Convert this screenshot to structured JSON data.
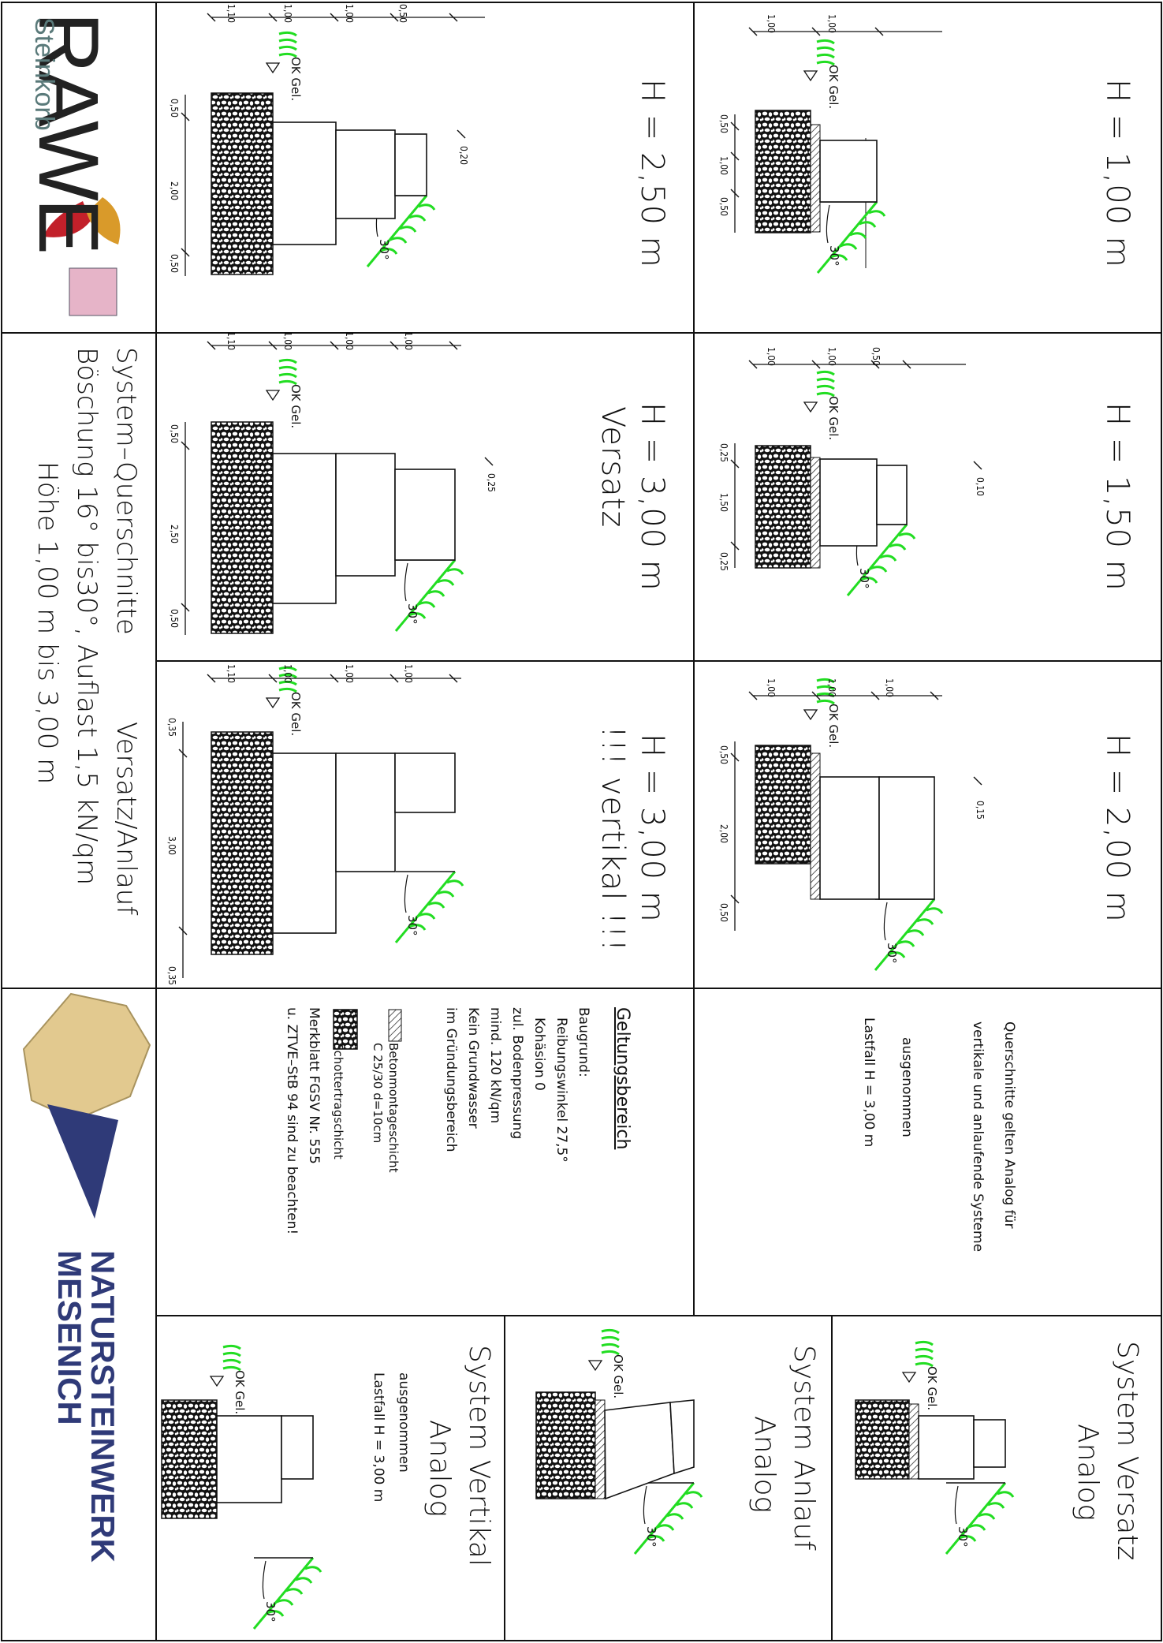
{
  "title": {
    "line1": "System–Querschnitte",
    "line1b": "Versatz/Anlauf",
    "line2": "Böschung 16° bis30°, Auflast 1,5 kN/qm",
    "line3": "Höhe 1,00 m bis 3,00 m"
  },
  "brand": {
    "rawe": "RAWE",
    "steinkorb": "Steinkorb",
    "natur1": "NATURSTEINWERK",
    "natur2": "MESENICH"
  },
  "panels": {
    "h100": "H = 1,00 m",
    "h150": "H = 1,50 m",
    "h200": "H = 2,00 m",
    "h250": "H = 2,50 m",
    "h300v": "H = 3,00 m",
    "h300v_sub": "Versatz",
    "h300k": "H = 3,00 m",
    "h300k_sub": "!!! vertikal !!!"
  },
  "labels": {
    "ok_gel": "OK Gel.",
    "angle": "30°",
    "angle_cut": "30°"
  },
  "dims": {
    "h100_top": [
      "1,00",
      "1,00"
    ],
    "h100_side": [
      "0,50",
      "1,00",
      "0,50"
    ],
    "h150_top": [
      "1,00",
      "1,00",
      "0,50"
    ],
    "h150_side": [
      "0,25",
      "1,50",
      "0,25"
    ],
    "h150_step": "0,10",
    "h200_top": [
      "1,00",
      "1,00",
      "1,00"
    ],
    "h200_side": [
      "0,50",
      "2,00",
      "0,50"
    ],
    "h200_step": "0,15",
    "h250_top": [
      "1,10",
      "1,00",
      "1,00",
      "0,50"
    ],
    "h250_side": [
      "0,50",
      "2,00",
      "0,50"
    ],
    "h250_step": "0,20",
    "h300v_top": [
      "1,10",
      "1,00",
      "1,00",
      "1,00"
    ],
    "h300v_side": [
      "0,50",
      "2,50",
      "0,50"
    ],
    "h300v_step": "0,25",
    "h300k_top": [
      "1,10",
      "1,00",
      "1,00",
      "1,00"
    ],
    "h300k_side": [
      "0,35",
      "3,00",
      "0,35"
    ]
  },
  "note": {
    "line1": "Querschnitte gelten Analog für",
    "line2": "vertikale und anlaufende Systeme",
    "line3": "ausgenommen",
    "line4": "Lastfall H = 3,00 m"
  },
  "geltung": {
    "heading": "Geltungsbereich",
    "baugrund": "Baugrund:",
    "reibung": "Reibungswinkel 27,5°",
    "kohaesion": "Kohäsion 0",
    "boden1": "zul. Bodenpressung",
    "boden2": "mind. 120 kN/qm",
    "grund1": "Kein Grundwasser",
    "grund2": "im Gründungsbereich",
    "beton1": "Betonmontageschicht",
    "beton2": "C 25/30 d=10cm",
    "schotter": "Schottertragschicht",
    "merk1": "Merkblatt FGSV Nr. 555",
    "merk2": "u. ZTVE–StB 94 sind zu beachten!"
  },
  "systems": {
    "versatz1": "System Versatz",
    "versatz2": "Analog",
    "anlauf1": "System Anlauf",
    "anlauf2": "Analog",
    "vertikal1": "System Vertikal",
    "vertikal2": "Analog",
    "vertikal3": "ausgenommen",
    "vertikal4": "Lastfall H = 3,00 m"
  },
  "colors": {
    "green": "#22dd22",
    "line": "#111111",
    "navy": "#2f3a78",
    "stone": "#e2c98f"
  }
}
